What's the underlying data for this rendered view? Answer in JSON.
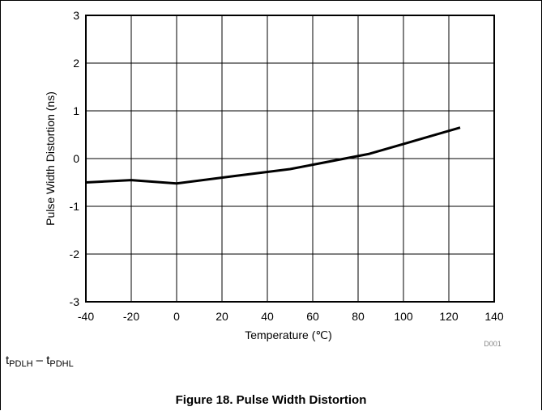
{
  "chart_data": {
    "type": "line",
    "title": "",
    "xlabel": "Temperature (℃)",
    "ylabel": "Pulse Width Distortion (ns)",
    "xlim": [
      -40,
      140
    ],
    "ylim": [
      -3,
      3
    ],
    "xticks": [
      "-40",
      "-20",
      "0",
      "20",
      "40",
      "60",
      "80",
      "100",
      "120",
      "140"
    ],
    "yticks": [
      "3",
      "2",
      "1",
      "0",
      "-1",
      "-2",
      "-3"
    ],
    "grid": true,
    "series": [
      {
        "x": [
          -40,
          -20,
          0,
          25,
          50,
          85,
          125
        ],
        "y": [
          -0.5,
          -0.45,
          -0.52,
          -0.37,
          -0.22,
          0.1,
          0.65
        ]
      }
    ],
    "figure_code": "D001"
  },
  "note": {
    "t1": "t",
    "sub1": "PDLH",
    "dash": " – ",
    "t2": "t",
    "sub2": "PDHL"
  },
  "caption": "Figure 18. Pulse Width Distortion"
}
